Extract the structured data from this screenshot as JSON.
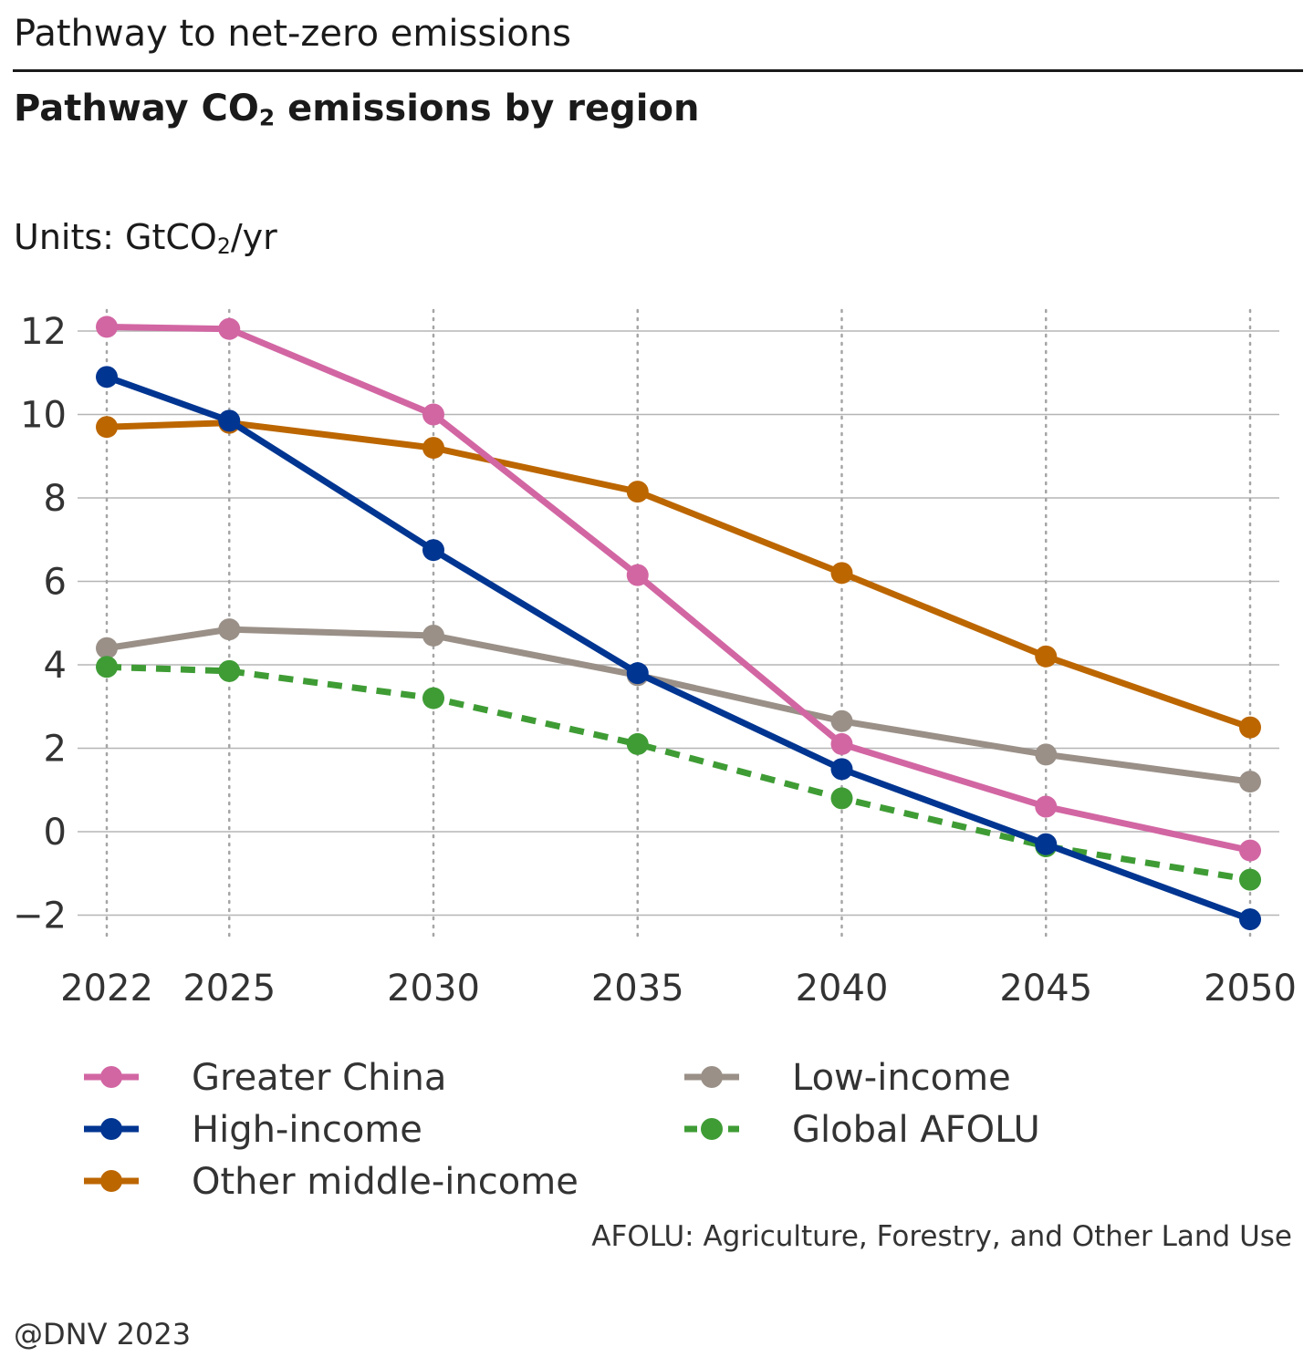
{
  "header": {
    "page_title": "Pathway to net-zero emissions",
    "chart_title_pre": "Pathway CO",
    "chart_title_sub": "2",
    "chart_title_post": " emissions by region",
    "units_pre": "Units: GtCO",
    "units_sub": "2",
    "units_post": "/yr"
  },
  "chart_data": {
    "type": "line",
    "x": [
      2022,
      2025,
      2030,
      2035,
      2040,
      2045,
      2050
    ],
    "x_tick_labels": [
      "2022",
      "2025",
      "2030",
      "2035",
      "2040",
      "2045",
      "2050"
    ],
    "y_ticks": [
      12,
      10,
      8,
      6,
      4,
      2,
      0,
      -2
    ],
    "y_tick_labels": [
      "12",
      "10",
      "8",
      "6",
      "4",
      "2",
      "0",
      "−2"
    ],
    "ylim": [
      -2.5,
      12.5
    ],
    "grid": "horizontal solid, vertical dotted at x values",
    "series": [
      {
        "name": "Greater China",
        "color": "#D266A3",
        "dashed": false,
        "values": [
          12.1,
          12.05,
          10.0,
          6.15,
          2.1,
          0.6,
          -0.45
        ]
      },
      {
        "name": "High-income",
        "color": "#003591",
        "dashed": false,
        "values": [
          10.9,
          9.85,
          6.75,
          3.8,
          1.5,
          -0.3,
          -2.1
        ]
      },
      {
        "name": "Other middle-income",
        "color": "#BC6600",
        "dashed": false,
        "values": [
          9.7,
          9.8,
          9.2,
          8.15,
          6.2,
          4.2,
          2.5
        ]
      },
      {
        "name": "Low-income",
        "color": "#9A9088",
        "dashed": false,
        "values": [
          4.4,
          4.85,
          4.7,
          3.75,
          2.65,
          1.85,
          1.2
        ]
      },
      {
        "name": "Global AFOLU",
        "color": "#3F9C35",
        "dashed": true,
        "values": [
          3.95,
          3.85,
          3.2,
          2.1,
          0.8,
          -0.35,
          -1.15
        ]
      }
    ],
    "legend_placement": "bottom"
  },
  "footer": {
    "note": "AFOLU: Agriculture, Forestry, and Other Land Use",
    "copyright": "@DNV 2023"
  }
}
